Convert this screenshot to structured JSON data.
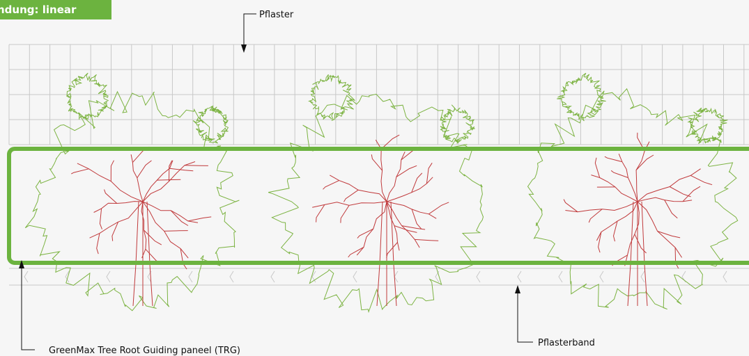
{
  "title": "ndung: linear",
  "labels": {
    "pflaster": "Pflaster",
    "pflasterband": "Pflasterband",
    "trg": "GreenMax Tree Root Guiding paneel (TRG)"
  },
  "colors": {
    "accent": "#6cb33f",
    "canopy": "#7cb342",
    "roots": "#c0393b",
    "grid": "#c8c8c8",
    "background": "#f6f6f6",
    "leader": "#111111"
  },
  "icons": [
    "arrow-down-icon",
    "arrow-up-icon"
  ]
}
